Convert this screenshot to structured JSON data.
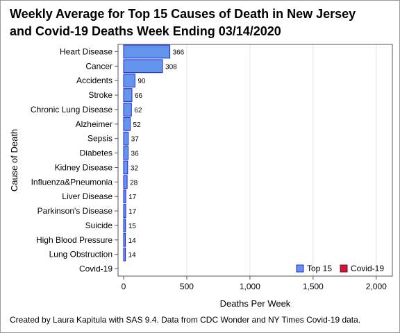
{
  "title_line1": "Weekly Average for Top 15 Causes of Death in New Jersey",
  "title_line2": "and Covid-19 Deaths Week Ending 03/14/2020",
  "footnote": "Created by Laura Kapitula with SAS 9.4. Data from CDC Wonder and NY Times Covid-19 data.",
  "colors": {
    "top15": "#6495ED",
    "top15_edge": "#1F24D8",
    "covid": "#D2143A",
    "covid_edge": "#7A0A1E",
    "grid": "#e3e3e3"
  },
  "chart_data": {
    "type": "bar",
    "orientation": "horizontal",
    "categories": [
      "Heart Disease",
      "Cancer",
      "Accidents",
      "Stroke",
      "Chronic Lung Disease",
      "Alzheimer",
      "Sepsis",
      "Diabetes",
      "Kidney Disease",
      "Influenza&Pneumonia",
      "Liver Disease",
      "Parkinson's Disease",
      "Suicide",
      "High Blood Pressure",
      "Lung Obstruction",
      "Covid-19"
    ],
    "series": [
      {
        "name": "Top 15",
        "values": [
          366,
          308,
          90,
          66,
          62,
          52,
          37,
          36,
          32,
          28,
          17,
          17,
          15,
          14,
          14,
          null
        ]
      },
      {
        "name": "Covid-19",
        "values": [
          null,
          null,
          null,
          null,
          null,
          null,
          null,
          null,
          null,
          null,
          null,
          null,
          null,
          null,
          null,
          0
        ]
      }
    ],
    "data_labels": [
      "366",
      "308",
      "90",
      "66",
      "62",
      "52",
      "37",
      "36",
      "32",
      "28",
      "17",
      "17",
      "15",
      "14",
      "14",
      ""
    ],
    "xlabel": "Deaths Per Week",
    "ylabel": "Cause of Death",
    "xlim": [
      0,
      2100
    ],
    "xticks": [
      0,
      500,
      1000,
      1500,
      2000
    ],
    "xtick_labels": [
      "0",
      "500",
      "1,000",
      "1,500",
      "2,000"
    ],
    "grid": "vertical",
    "legend": {
      "placement": "bottom-right",
      "entries": [
        "Top 15",
        "Covid-19"
      ]
    }
  }
}
